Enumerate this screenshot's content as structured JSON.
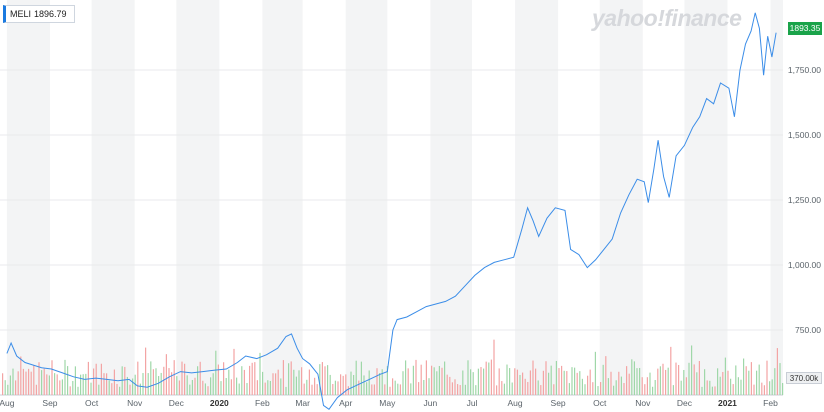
{
  "legend": {
    "symbol": "MELI",
    "value": "1896.79"
  },
  "watermark": "yahoo!finance",
  "last_price_label": "1893.35",
  "volume_label": "370.00k",
  "colors": {
    "line": "#3b8de8",
    "price_tag": "#1aa34a",
    "vol_up": "#9fd7a8",
    "vol_down": "#f3a4a4",
    "band": "#f3f4f5"
  },
  "chart_data": {
    "type": "line",
    "title": "",
    "xlabel": "",
    "ylabel": "",
    "ylim": [
      500,
      2000
    ],
    "y_ticks": [
      750,
      1000,
      1250,
      1500,
      1750
    ],
    "y_tick_labels": [
      "750.00",
      "1,000.00",
      "1,250.00",
      "1,500.00",
      "1,750.00"
    ],
    "x_labels": [
      {
        "label": "Aug",
        "date": "2019-08-01"
      },
      {
        "label": "Sep",
        "date": "2019-09-01"
      },
      {
        "label": "Oct",
        "date": "2019-10-01"
      },
      {
        "label": "Nov",
        "date": "2019-11-01"
      },
      {
        "label": "Dec",
        "date": "2019-12-01"
      },
      {
        "label": "2020",
        "date": "2020-01-01",
        "bold": true
      },
      {
        "label": "Feb",
        "date": "2020-02-01"
      },
      {
        "label": "Mar",
        "date": "2020-03-01"
      },
      {
        "label": "Apr",
        "date": "2020-04-01"
      },
      {
        "label": "May",
        "date": "2020-05-01"
      },
      {
        "label": "Jun",
        "date": "2020-06-01"
      },
      {
        "label": "Jul",
        "date": "2020-07-01"
      },
      {
        "label": "Aug",
        "date": "2020-08-01"
      },
      {
        "label": "Sep",
        "date": "2020-09-01"
      },
      {
        "label": "Oct",
        "date": "2020-10-01"
      },
      {
        "label": "Nov",
        "date": "2020-11-01"
      },
      {
        "label": "Dec",
        "date": "2020-12-01"
      },
      {
        "label": "2021",
        "date": "2021-01-01",
        "bold": true
      },
      {
        "label": "Feb",
        "date": "2021-02-01"
      }
    ],
    "series": [
      {
        "values": [
          {
            "x": "2019-08-01",
            "y": 660
          },
          {
            "x": "2019-08-04",
            "y": 700
          },
          {
            "x": "2019-08-08",
            "y": 650
          },
          {
            "x": "2019-08-14",
            "y": 625
          },
          {
            "x": "2019-08-20",
            "y": 615
          },
          {
            "x": "2019-08-26",
            "y": 605
          },
          {
            "x": "2019-09-02",
            "y": 600
          },
          {
            "x": "2019-09-10",
            "y": 585
          },
          {
            "x": "2019-09-18",
            "y": 570
          },
          {
            "x": "2019-09-26",
            "y": 560
          },
          {
            "x": "2019-10-04",
            "y": 565
          },
          {
            "x": "2019-10-12",
            "y": 560
          },
          {
            "x": "2019-10-20",
            "y": 555
          },
          {
            "x": "2019-10-28",
            "y": 560
          },
          {
            "x": "2019-11-03",
            "y": 535
          },
          {
            "x": "2019-11-10",
            "y": 530
          },
          {
            "x": "2019-11-18",
            "y": 545
          },
          {
            "x": "2019-11-26",
            "y": 570
          },
          {
            "x": "2019-12-04",
            "y": 590
          },
          {
            "x": "2019-12-12",
            "y": 585
          },
          {
            "x": "2019-12-20",
            "y": 590
          },
          {
            "x": "2019-12-28",
            "y": 595
          },
          {
            "x": "2020-01-06",
            "y": 600
          },
          {
            "x": "2020-01-14",
            "y": 625
          },
          {
            "x": "2020-01-20",
            "y": 650
          },
          {
            "x": "2020-01-28",
            "y": 640
          },
          {
            "x": "2020-02-04",
            "y": 655
          },
          {
            "x": "2020-02-12",
            "y": 680
          },
          {
            "x": "2020-02-18",
            "y": 725
          },
          {
            "x": "2020-02-22",
            "y": 735
          },
          {
            "x": "2020-02-26",
            "y": 680
          },
          {
            "x": "2020-03-01",
            "y": 640
          },
          {
            "x": "2020-03-06",
            "y": 620
          },
          {
            "x": "2020-03-12",
            "y": 580
          },
          {
            "x": "2020-03-16",
            "y": 460
          },
          {
            "x": "2020-03-20",
            "y": 445
          },
          {
            "x": "2020-03-26",
            "y": 490
          },
          {
            "x": "2020-04-02",
            "y": 520
          },
          {
            "x": "2020-04-10",
            "y": 540
          },
          {
            "x": "2020-04-18",
            "y": 560
          },
          {
            "x": "2020-04-26",
            "y": 580
          },
          {
            "x": "2020-05-01",
            "y": 590
          },
          {
            "x": "2020-05-05",
            "y": 750
          },
          {
            "x": "2020-05-08",
            "y": 790
          },
          {
            "x": "2020-05-15",
            "y": 800
          },
          {
            "x": "2020-05-22",
            "y": 820
          },
          {
            "x": "2020-05-29",
            "y": 840
          },
          {
            "x": "2020-06-05",
            "y": 850
          },
          {
            "x": "2020-06-12",
            "y": 860
          },
          {
            "x": "2020-06-19",
            "y": 880
          },
          {
            "x": "2020-06-26",
            "y": 920
          },
          {
            "x": "2020-07-03",
            "y": 960
          },
          {
            "x": "2020-07-10",
            "y": 990
          },
          {
            "x": "2020-07-17",
            "y": 1010
          },
          {
            "x": "2020-07-24",
            "y": 1020
          },
          {
            "x": "2020-07-31",
            "y": 1030
          },
          {
            "x": "2020-08-06",
            "y": 1140
          },
          {
            "x": "2020-08-10",
            "y": 1220
          },
          {
            "x": "2020-08-14",
            "y": 1170
          },
          {
            "x": "2020-08-18",
            "y": 1110
          },
          {
            "x": "2020-08-24",
            "y": 1180
          },
          {
            "x": "2020-08-30",
            "y": 1220
          },
          {
            "x": "2020-09-06",
            "y": 1210
          },
          {
            "x": "2020-09-10",
            "y": 1060
          },
          {
            "x": "2020-09-16",
            "y": 1040
          },
          {
            "x": "2020-09-22",
            "y": 990
          },
          {
            "x": "2020-09-28",
            "y": 1020
          },
          {
            "x": "2020-10-04",
            "y": 1060
          },
          {
            "x": "2020-10-10",
            "y": 1100
          },
          {
            "x": "2020-10-16",
            "y": 1200
          },
          {
            "x": "2020-10-22",
            "y": 1270
          },
          {
            "x": "2020-10-28",
            "y": 1330
          },
          {
            "x": "2020-11-02",
            "y": 1320
          },
          {
            "x": "2020-11-05",
            "y": 1240
          },
          {
            "x": "2020-11-09",
            "y": 1370
          },
          {
            "x": "2020-11-12",
            "y": 1480
          },
          {
            "x": "2020-11-16",
            "y": 1340
          },
          {
            "x": "2020-11-20",
            "y": 1260
          },
          {
            "x": "2020-11-25",
            "y": 1420
          },
          {
            "x": "2020-12-01",
            "y": 1460
          },
          {
            "x": "2020-12-07",
            "y": 1530
          },
          {
            "x": "2020-12-12",
            "y": 1570
          },
          {
            "x": "2020-12-17",
            "y": 1640
          },
          {
            "x": "2020-12-22",
            "y": 1620
          },
          {
            "x": "2020-12-27",
            "y": 1700
          },
          {
            "x": "2021-01-02",
            "y": 1680
          },
          {
            "x": "2021-01-06",
            "y": 1570
          },
          {
            "x": "2021-01-10",
            "y": 1750
          },
          {
            "x": "2021-01-14",
            "y": 1850
          },
          {
            "x": "2021-01-18",
            "y": 1900
          },
          {
            "x": "2021-01-21",
            "y": 1970
          },
          {
            "x": "2021-01-24",
            "y": 1910
          },
          {
            "x": "2021-01-27",
            "y": 1730
          },
          {
            "x": "2021-01-30",
            "y": 1880
          },
          {
            "x": "2021-02-02",
            "y": 1800
          },
          {
            "x": "2021-02-05",
            "y": 1893.35
          }
        ]
      }
    ]
  }
}
